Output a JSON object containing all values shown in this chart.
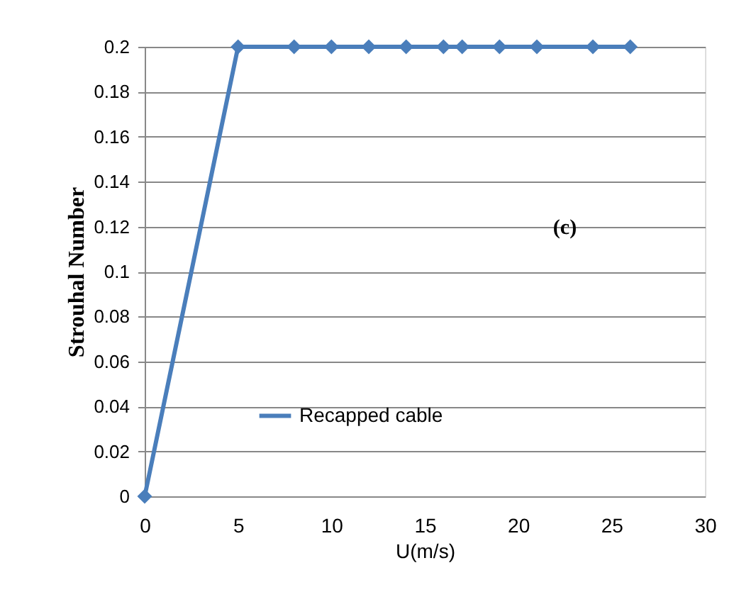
{
  "chart_data": {
    "type": "line",
    "xlabel": "U(m/s)",
    "ylabel": "Strouhal Number",
    "x": [
      0,
      5,
      8,
      10,
      12,
      14,
      16,
      17,
      19,
      21,
      24,
      26
    ],
    "series": [
      {
        "name": "Recapped cable",
        "color": "#4a7ebb",
        "values": [
          0,
          0.2,
          0.2,
          0.2,
          0.2,
          0.2,
          0.2,
          0.2,
          0.2,
          0.2,
          0.2,
          0.2
        ]
      }
    ],
    "xlim": [
      0,
      30
    ],
    "xticks": [
      0,
      5,
      10,
      15,
      20,
      25,
      30
    ],
    "ylim": [
      0,
      0.2
    ],
    "yticks": [
      0,
      0.02,
      0.04,
      0.06,
      0.08,
      0.1,
      0.12,
      0.14,
      0.16,
      0.18,
      0.2
    ],
    "grid": "y",
    "legend": "bottom",
    "marker": "diamond",
    "line_style": "solid",
    "annotations": [
      "(c)"
    ]
  }
}
